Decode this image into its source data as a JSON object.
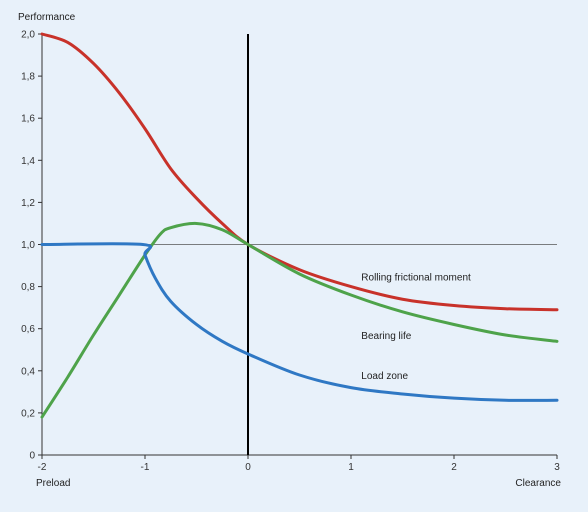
{
  "chart_data": {
    "type": "line",
    "ylabel": "Performance",
    "x_left_label": "Preload",
    "x_right_label": "Clearance",
    "xlim": [
      -2,
      3
    ],
    "ylim": [
      0,
      2.0
    ],
    "x_ticks": [
      -2,
      -1,
      0,
      1,
      2,
      3
    ],
    "x_tick_labels": [
      "-2",
      "-1",
      "0",
      "1",
      "2",
      "3"
    ],
    "y_ticks": [
      0,
      0.2,
      0.4,
      0.6,
      0.8,
      1.0,
      1.2,
      1.4,
      1.6,
      1.8,
      2.0
    ],
    "y_tick_labels": [
      "0",
      "0,2",
      "0,4",
      "0,6",
      "0,8",
      "1,0",
      "1,2",
      "1,4",
      "1,6",
      "1,8",
      "2,0"
    ],
    "reference_line_y": 1.0,
    "reference_line_x": 0,
    "series": [
      {
        "name": "Rolling frictional moment",
        "color": "#c8322a",
        "x": [
          -2,
          -1.75,
          -1.5,
          -1.25,
          -1,
          -0.75,
          -0.5,
          -0.25,
          0,
          0.5,
          1,
          1.5,
          2,
          2.5,
          3
        ],
        "y": [
          2.0,
          1.96,
          1.86,
          1.72,
          1.55,
          1.36,
          1.22,
          1.1,
          1.0,
          0.88,
          0.8,
          0.74,
          0.71,
          0.695,
          0.69
        ]
      },
      {
        "name": "Bearing life",
        "color": "#4ea34a",
        "x": [
          -2,
          -1.75,
          -1.5,
          -1.25,
          -1,
          -0.85,
          -0.75,
          -0.5,
          -0.25,
          0,
          0.5,
          1,
          1.5,
          2,
          2.5,
          3
        ],
        "y": [
          0.18,
          0.37,
          0.57,
          0.76,
          0.95,
          1.05,
          1.08,
          1.1,
          1.07,
          1.0,
          0.86,
          0.76,
          0.68,
          0.62,
          0.57,
          0.54
        ]
      },
      {
        "name": "Load zone",
        "color": "#2f78c4",
        "x": [
          -2,
          -1.02,
          -1,
          -0.9,
          -0.75,
          -0.5,
          -0.25,
          0,
          0.5,
          1,
          1.5,
          2,
          2.5,
          3
        ],
        "y": [
          1.0,
          1.0,
          0.95,
          0.84,
          0.73,
          0.62,
          0.54,
          0.48,
          0.38,
          0.32,
          0.29,
          0.27,
          0.26,
          0.26
        ]
      }
    ],
    "annotations": [
      {
        "text": "Rolling frictional moment",
        "x": 1.1,
        "y": 0.83
      },
      {
        "text": "Bearing life",
        "x": 1.1,
        "y": 0.55
      },
      {
        "text": "Load zone",
        "x": 1.1,
        "y": 0.36
      }
    ]
  }
}
